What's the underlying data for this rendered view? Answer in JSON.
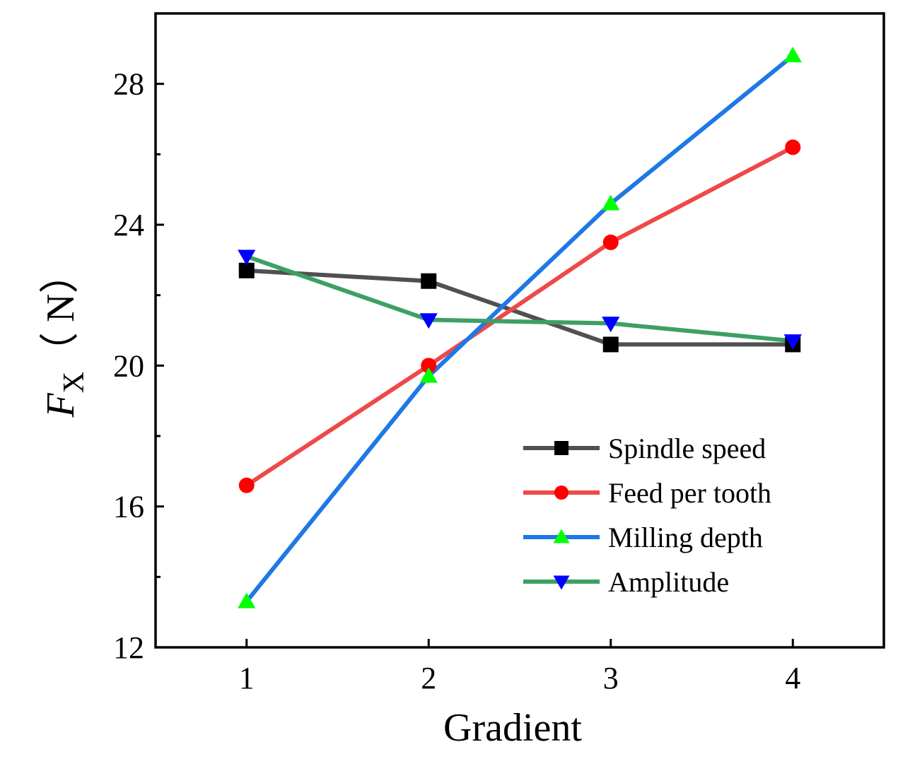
{
  "chart_data": {
    "type": "line",
    "x": [
      1,
      2,
      3,
      4
    ],
    "xlim": [
      0.5,
      4.5
    ],
    "ylim": [
      12,
      30
    ],
    "xticks": [
      1,
      2,
      3,
      4
    ],
    "yticks": [
      12,
      16,
      20,
      24,
      28
    ],
    "xlabel": "Gradient",
    "ylabel": {
      "main": "F",
      "subscript": "X",
      "unit": "（ N）"
    },
    "legend_position": "lower-right",
    "series": [
      {
        "name": "Spindle speed",
        "values": [
          22.7,
          22.4,
          20.6,
          20.6
        ],
        "line_color": "#505050",
        "marker": "square",
        "marker_color": "#000000"
      },
      {
        "name": "Feed per tooth",
        "values": [
          16.6,
          20.0,
          23.5,
          26.2
        ],
        "line_color": "#f04848",
        "marker": "circle",
        "marker_color": "#ff0000"
      },
      {
        "name": "Milling depth",
        "values": [
          13.3,
          19.7,
          24.6,
          28.8
        ],
        "line_color": "#1e78e6",
        "marker": "triangle-up",
        "marker_color": "#00ff00"
      },
      {
        "name": "Amplitude",
        "values": [
          23.1,
          21.3,
          21.2,
          20.7
        ],
        "line_color": "#3ca064",
        "marker": "triangle-down",
        "marker_color": "#0000ff"
      }
    ]
  }
}
